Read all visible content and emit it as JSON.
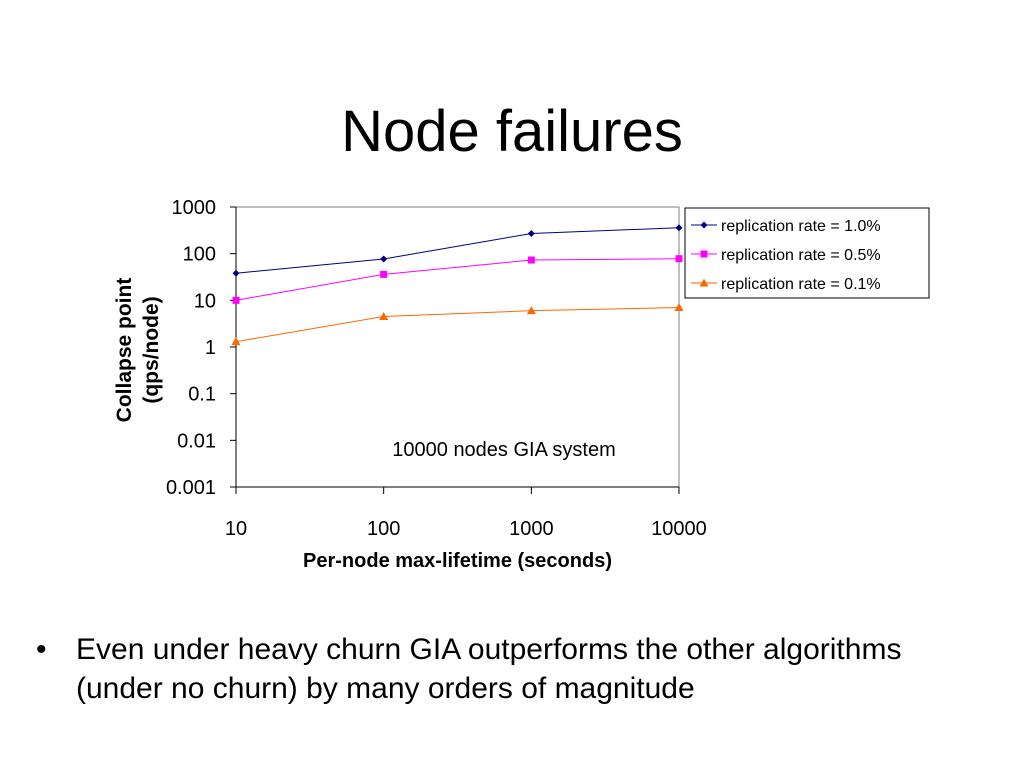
{
  "slide": {
    "title": "Node failures",
    "bullets": [
      "Even under heavy churn GIA outperforms the other algorithms (under no churn) by many orders of magnitude"
    ]
  },
  "chart_data": {
    "type": "line",
    "xlabel": "Per-node max-lifetime (seconds)",
    "ylabel_lines": [
      "Collapse point",
      "(qps/node)"
    ],
    "x_scale": "log",
    "y_scale": "log",
    "xlim": [
      10,
      10000
    ],
    "ylim": [
      0.001,
      1000
    ],
    "x_ticks": [
      "10",
      "100",
      "1000",
      "10000"
    ],
    "y_ticks": [
      "1000",
      "100",
      "10",
      "1",
      "0.1",
      "0.01",
      "0.001"
    ],
    "x": [
      10,
      100,
      1000,
      10000
    ],
    "annotation": "10000 nodes GIA system",
    "grid": false,
    "legend_position": "top-right",
    "series": [
      {
        "name": "replication rate = 1.0%",
        "color": "#000080",
        "marker": "diamond",
        "values": [
          38,
          77,
          270,
          360
        ]
      },
      {
        "name": "replication rate = 0.5%",
        "color": "#FF00FF",
        "marker": "square",
        "values": [
          10,
          36,
          73,
          78
        ]
      },
      {
        "name": "replication rate = 0.1%",
        "color": "#FF6600",
        "marker": "triangle",
        "values": [
          1.3,
          4.5,
          6.0,
          7.0
        ]
      }
    ]
  }
}
